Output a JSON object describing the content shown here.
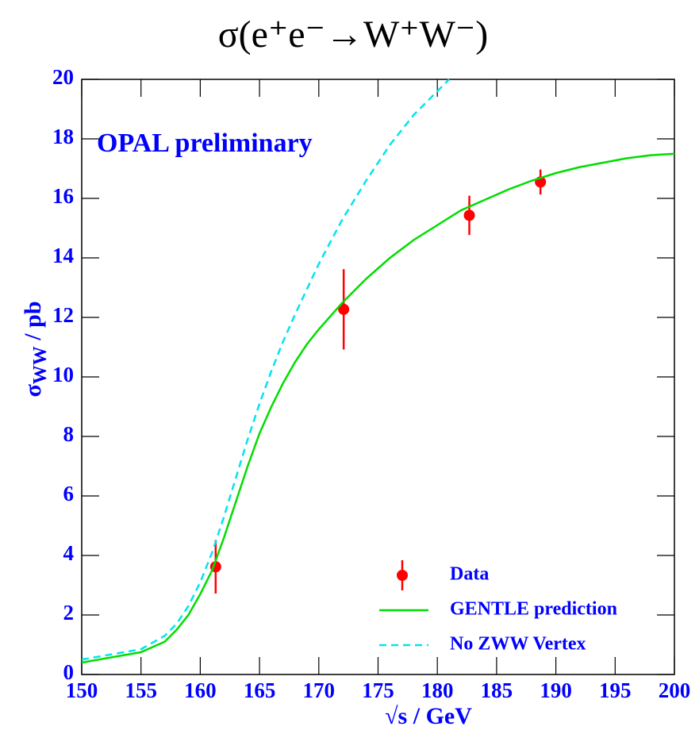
{
  "chart_data": {
    "type": "line",
    "title": "σ(e⁺e⁻→W⁺W⁻)",
    "ylabel": [
      "σ",
      "WW",
      " / pb"
    ],
    "xlabel": "√s / GeV",
    "annotation": "OPAL preliminary",
    "xlim": [
      150,
      200
    ],
    "ylim": [
      0,
      20
    ],
    "xticks": [
      150,
      155,
      160,
      165,
      170,
      175,
      180,
      185,
      190,
      195,
      200
    ],
    "yticks": [
      0,
      2,
      4,
      6,
      8,
      10,
      12,
      14,
      16,
      18,
      20
    ],
    "legend": "lower-right",
    "series": [
      {
        "name": "Data",
        "color": "#ff0000",
        "style": "points",
        "x": [
          161.3,
          172.1,
          182.7,
          188.7
        ],
        "values": [
          3.62,
          12.27,
          15.43,
          16.55
        ],
        "errors": [
          0.9,
          1.35,
          0.66,
          0.42
        ]
      },
      {
        "name": "GENTLE prediction",
        "color": "#00dd00",
        "style": "solid",
        "x": [
          150,
          155,
          157,
          158,
          159,
          160,
          161,
          162,
          163,
          164,
          165,
          166,
          167,
          168,
          169,
          170,
          172,
          174,
          176,
          178,
          180,
          182,
          184,
          186,
          188,
          190,
          192,
          194,
          196,
          198,
          200
        ],
        "values": [
          0.4,
          0.75,
          1.1,
          1.5,
          2.0,
          2.7,
          3.5,
          4.6,
          5.8,
          7.0,
          8.1,
          9.0,
          9.8,
          10.5,
          11.1,
          11.6,
          12.5,
          13.3,
          14.0,
          14.6,
          15.1,
          15.6,
          15.95,
          16.3,
          16.6,
          16.85,
          17.05,
          17.2,
          17.35,
          17.45,
          17.5
        ]
      },
      {
        "name": "No ZWW Vertex",
        "color": "#00e5ee",
        "style": "dashed",
        "x": [
          150,
          155,
          157,
          158,
          159,
          160,
          161,
          162,
          163,
          164,
          165,
          166,
          167,
          168,
          170,
          172,
          174,
          176,
          178,
          180,
          181
        ],
        "values": [
          0.5,
          0.85,
          1.3,
          1.7,
          2.3,
          3.1,
          4.1,
          5.3,
          6.6,
          7.9,
          9.1,
          10.2,
          11.2,
          12.1,
          13.8,
          15.3,
          16.6,
          17.8,
          18.8,
          19.6,
          20.0
        ]
      }
    ]
  }
}
